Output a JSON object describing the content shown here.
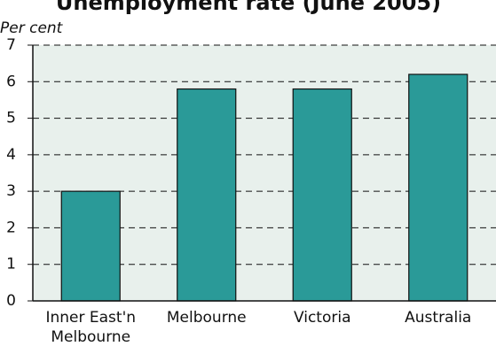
{
  "chart_data": {
    "type": "bar",
    "title": "Unemployment rate (June 2005)",
    "y_label": "Per cent",
    "categories": [
      "Inner East'n Melbourne",
      "Melbourne",
      "Victoria",
      "Australia"
    ],
    "values": [
      3.0,
      5.8,
      5.8,
      6.2
    ],
    "color": "#2a9a98",
    "ylim": [
      0,
      7
    ],
    "yticks": [
      0,
      1,
      2,
      3,
      4,
      5,
      6,
      7
    ],
    "grid": true
  }
}
